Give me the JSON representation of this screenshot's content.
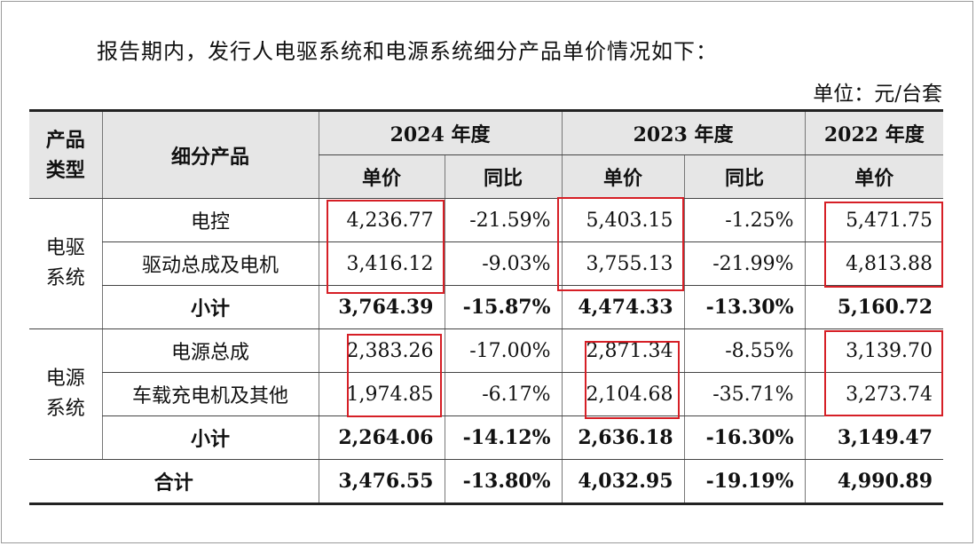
{
  "intro": "报告期内，发行人电驱系统和电源系统细分产品单价情况如下：",
  "unit": "单位：元/台套",
  "header": {
    "product_type": "产品类型",
    "product_type_l1": "产品",
    "product_type_l2": "类型",
    "sub_product": "细分产品",
    "y2024": "2024 年度",
    "y2023": "2023 年度",
    "y2022": "2022 年度",
    "price": "单价",
    "yoy": "同比"
  },
  "groups": [
    {
      "category": "电驱系统",
      "category_l1": "电驱",
      "category_l2": "系统",
      "rows": [
        {
          "name": "电控",
          "p2024": "4,236.77",
          "y2024": "-21.59%",
          "p2023": "5,403.15",
          "y2023": "-1.25%",
          "p2022": "5,471.75"
        },
        {
          "name": "驱动总成及电机",
          "p2024": "3,416.12",
          "y2024": "-9.03%",
          "p2023": "3,755.13",
          "y2023": "-21.99%",
          "p2022": "4,813.88"
        }
      ],
      "subtotal": {
        "label": "小计",
        "p2024": "3,764.39",
        "y2024": "-15.87%",
        "p2023": "4,474.33",
        "y2023": "-13.30%",
        "p2022": "5,160.72"
      }
    },
    {
      "category": "电源系统",
      "category_l1": "电源",
      "category_l2": "系统",
      "rows": [
        {
          "name": "电源总成",
          "p2024": "2,383.26",
          "y2024": "-17.00%",
          "p2023": "2,871.34",
          "y2023": "-8.55%",
          "p2022": "3,139.70"
        },
        {
          "name": "车载充电机及其他",
          "p2024": "1,974.85",
          "y2024": "-6.17%",
          "p2023": "2,104.68",
          "y2023": "-35.71%",
          "p2022": "3,273.74"
        }
      ],
      "subtotal": {
        "label": "小计",
        "p2024": "2,264.06",
        "y2024": "-14.12%",
        "p2023": "2,636.18",
        "y2023": "-16.30%",
        "p2022": "3,149.47"
      }
    }
  ],
  "total": {
    "label": "合计",
    "p2024": "3,476.55",
    "y2024": "-13.80%",
    "p2023": "4,032.95",
    "y2023": "-19.19%",
    "p2022": "4,990.89"
  },
  "highlight_color": "#d61f26"
}
